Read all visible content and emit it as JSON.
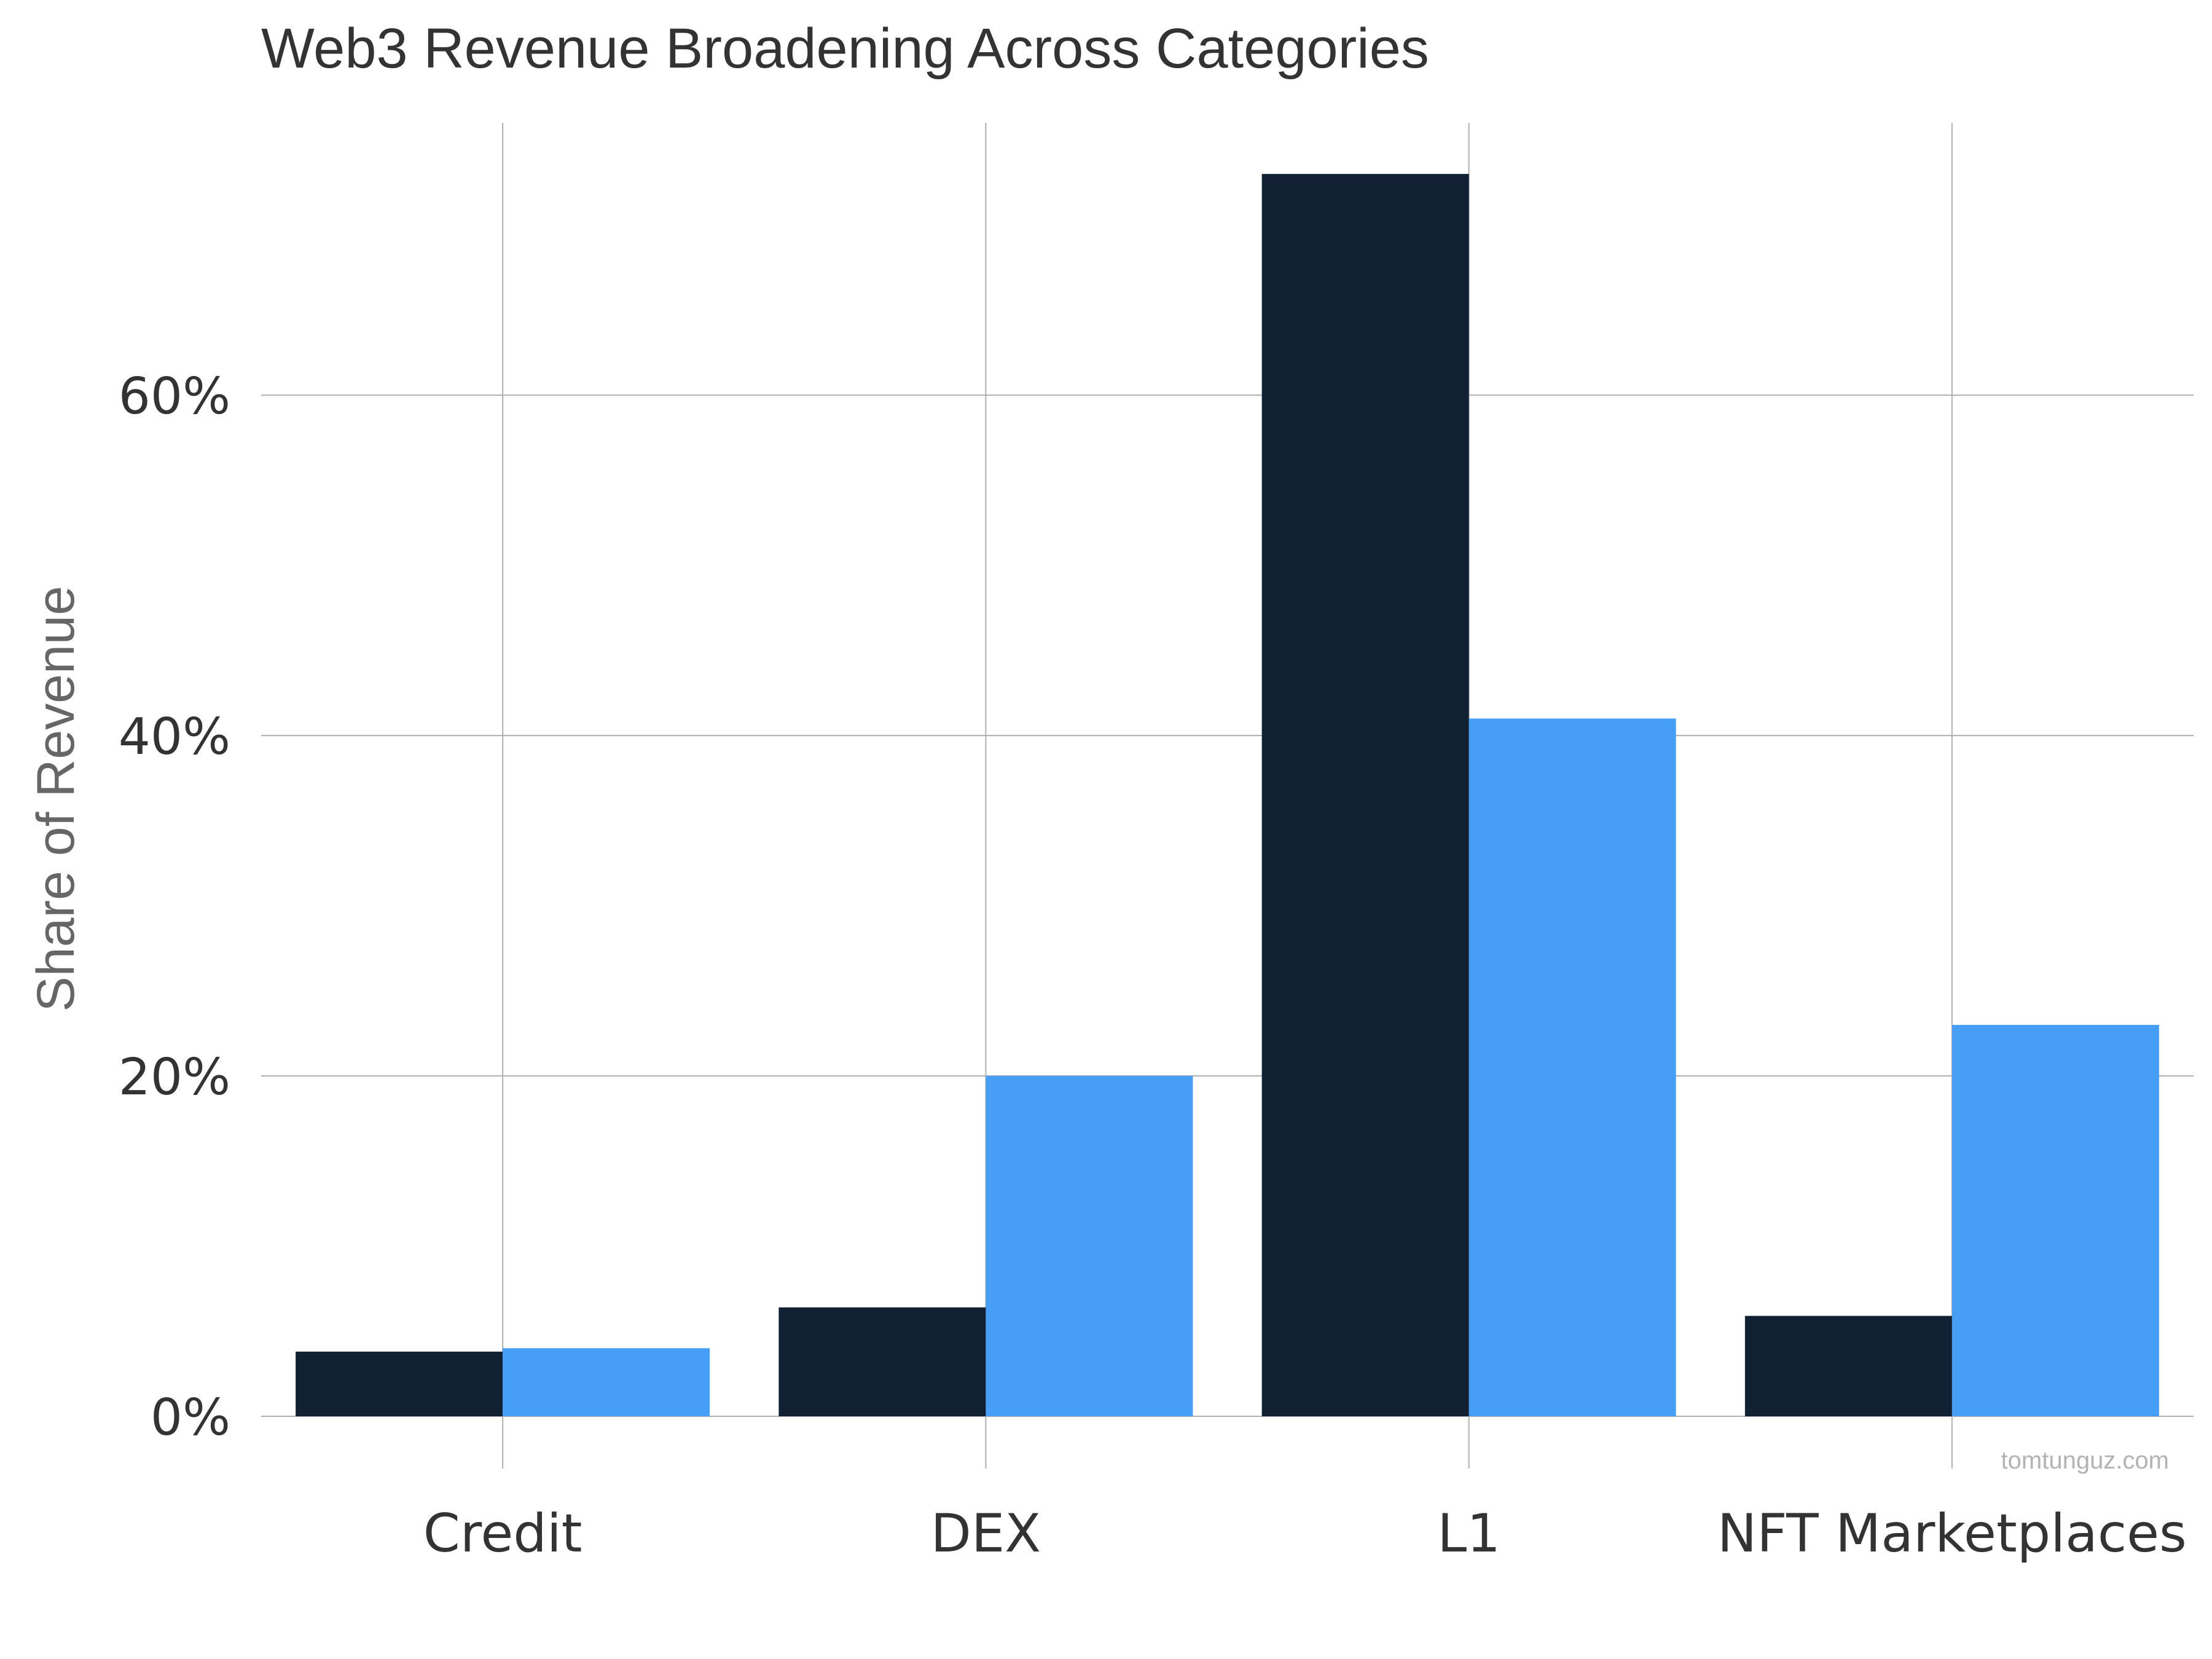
{
  "chart_data": {
    "type": "bar",
    "title": "Web3 Revenue Broadening Across Categories",
    "xlabel": "",
    "ylabel": "Share of Revenue",
    "categories": [
      "Credit",
      "DEX",
      "L1",
      "NFT Marketplaces"
    ],
    "series": [
      {
        "values": [
          3.8,
          6.4,
          73.0,
          5.9
        ]
      },
      {
        "values": [
          4.0,
          20.0,
          41.0,
          23.0
        ]
      }
    ],
    "ylim": [
      0,
      76
    ],
    "yticks": [
      0,
      20,
      40,
      60
    ],
    "ytick_labels": [
      "0%",
      "20%",
      "40%",
      "60%"
    ],
    "grid": true,
    "colors": [
      "#112133",
      "#479ef5"
    ],
    "source_credit": "tomtunguz.com"
  }
}
